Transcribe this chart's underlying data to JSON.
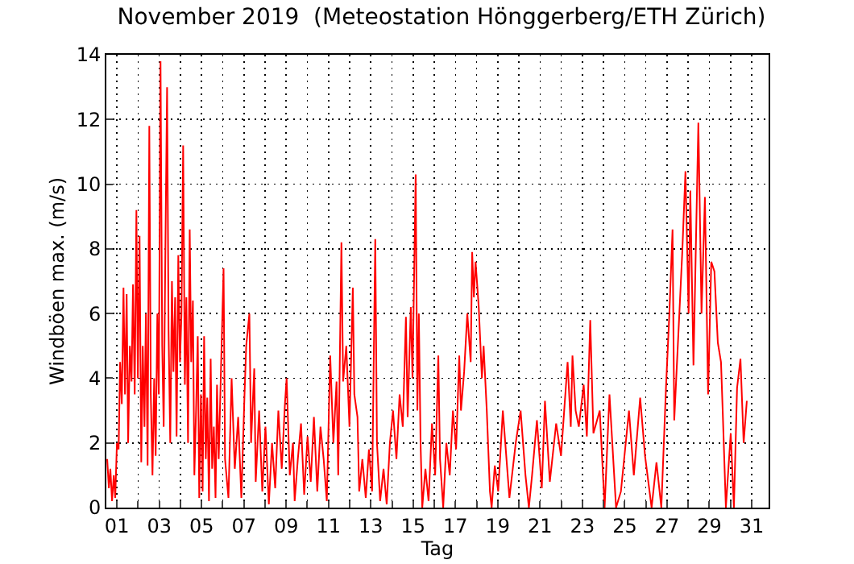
{
  "chart_data": {
    "type": "line",
    "title": "November 2019  (Meteostation Hönggerberg/ETH Zürich)",
    "xlabel": "Tag",
    "ylabel": "Windböen max. (m/s)",
    "x": [
      0.54,
      0.62,
      0.69,
      0.77,
      0.85,
      0.92,
      1.0,
      1.08,
      1.15,
      1.23,
      1.31,
      1.38,
      1.46,
      1.53,
      1.61,
      1.69,
      1.76,
      1.84,
      1.92,
      1.99,
      2.07,
      2.15,
      2.22,
      2.3,
      2.37,
      2.45,
      2.53,
      2.6,
      2.68,
      2.76,
      2.83,
      2.91,
      2.98,
      3.06,
      3.14,
      3.21,
      3.29,
      3.37,
      3.44,
      3.52,
      3.6,
      3.67,
      3.75,
      3.82,
      3.9,
      3.98,
      4.05,
      4.13,
      4.21,
      4.28,
      4.36,
      4.44,
      4.51,
      4.59,
      4.66,
      4.74,
      4.82,
      4.89,
      4.97,
      5.05,
      5.12,
      5.2,
      5.27,
      5.35,
      5.43,
      5.5,
      5.58,
      5.66,
      5.73,
      5.81,
      6.04,
      6.11,
      6.27,
      6.42,
      6.57,
      6.73,
      6.88,
      7.03,
      7.11,
      7.26,
      7.34,
      7.49,
      7.56,
      7.72,
      7.87,
      8.02,
      8.18,
      8.33,
      8.48,
      8.63,
      8.79,
      8.94,
      9.02,
      9.17,
      9.32,
      9.4,
      9.55,
      9.7,
      9.85,
      10.01,
      10.16,
      10.31,
      10.47,
      10.62,
      10.77,
      10.92,
      11.08,
      11.23,
      11.38,
      11.46,
      11.61,
      11.69,
      11.84,
      11.99,
      12.15,
      12.22,
      12.37,
      12.45,
      12.6,
      12.76,
      12.91,
      13.06,
      13.21,
      13.29,
      13.44,
      13.6,
      13.75,
      13.9,
      14.05,
      14.21,
      14.36,
      14.51,
      14.66,
      14.74,
      14.89,
      14.97,
      15.12,
      15.2,
      15.27,
      15.35,
      15.43,
      15.58,
      15.73,
      15.89,
      16.04,
      16.19,
      16.27,
      16.42,
      16.57,
      16.73,
      16.88,
      17.03,
      17.18,
      17.26,
      17.41,
      17.56,
      17.72,
      17.79,
      17.87,
      17.95,
      18.1,
      18.25,
      18.33,
      18.48,
      18.63,
      18.71,
      18.86,
      19.02,
      19.24,
      19.55,
      19.85,
      20.08,
      20.31,
      20.47,
      20.62,
      20.85,
      21.08,
      21.23,
      21.46,
      21.76,
      21.99,
      22.3,
      22.45,
      22.53,
      22.68,
      22.83,
      23.06,
      23.21,
      23.37,
      23.52,
      23.82,
      24.05,
      24.28,
      24.59,
      24.82,
      25.2,
      25.43,
      25.73,
      25.96,
      26.27,
      26.5,
      26.73,
      26.95,
      27.11,
      27.26,
      27.34,
      27.56,
      27.72,
      27.87,
      28.02,
      28.1,
      28.25,
      28.4,
      28.48,
      28.63,
      28.79,
      28.94,
      29.09,
      29.24,
      29.4,
      29.55,
      29.63,
      29.78,
      30.01,
      30.16,
      30.31,
      30.47,
      30.62,
      30.77
    ],
    "series": [
      {
        "color": "#ff0000",
        "values": [
          1.5,
          0.6,
          1.2,
          0.2,
          1.0,
          0.3,
          2.0,
          1.8,
          4.5,
          3.2,
          6.8,
          3.5,
          6.6,
          2.0,
          5.0,
          3.9,
          6.9,
          3.5,
          9.2,
          4.0,
          8.4,
          1.4,
          5.0,
          2.5,
          6.0,
          1.3,
          11.8,
          3.5,
          1.0,
          4.0,
          1.6,
          6.0,
          3.5,
          13.8,
          5.0,
          2.5,
          8.0,
          13.0,
          5.5,
          2.0,
          7.0,
          4.2,
          6.5,
          2.2,
          7.8,
          4.5,
          6.0,
          11.2,
          3.8,
          6.5,
          2.0,
          8.6,
          4.5,
          6.4,
          1.0,
          3.0,
          5.3,
          0.3,
          3.5,
          0.5,
          5.3,
          1.5,
          3.4,
          0.2,
          4.6,
          1.2,
          2.5,
          0.3,
          3.8,
          1.5,
          7.4,
          1.5,
          0.3,
          4.0,
          1.2,
          2.8,
          0.3,
          3.5,
          5.0,
          6.0,
          2.0,
          4.3,
          0.8,
          3.0,
          0.5,
          2.5,
          0.1,
          2.0,
          0.6,
          3.0,
          1.2,
          3.2,
          4.0,
          1.0,
          2.0,
          0.2,
          1.5,
          2.6,
          0.4,
          2.2,
          0.8,
          2.8,
          0.5,
          2.5,
          1.5,
          0.2,
          4.7,
          2.0,
          3.9,
          1.0,
          8.2,
          3.9,
          5.0,
          2.5,
          6.8,
          3.5,
          2.8,
          0.5,
          1.5,
          0.3,
          1.8,
          0.5,
          8.3,
          2.0,
          0.2,
          1.2,
          0.1,
          2.0,
          3.0,
          1.5,
          3.5,
          2.5,
          5.9,
          2.8,
          6.2,
          4.0,
          10.3,
          3.0,
          6.0,
          2.0,
          0.0,
          1.2,
          0.2,
          2.6,
          1.0,
          4.7,
          1.5,
          0.0,
          2.0,
          1.0,
          3.0,
          1.8,
          4.7,
          3.0,
          4.2,
          6.0,
          4.5,
          7.9,
          6.5,
          7.6,
          6.2,
          4.0,
          5.0,
          3.0,
          0.5,
          0.0,
          1.3,
          0.5,
          3.0,
          0.3,
          2.0,
          3.0,
          1.0,
          0.0,
          1.0,
          2.7,
          0.6,
          3.3,
          0.8,
          2.6,
          1.6,
          4.5,
          2.5,
          4.7,
          3.0,
          2.5,
          3.8,
          2.2,
          5.8,
          2.3,
          3.0,
          0.0,
          3.5,
          0.0,
          0.5,
          3.0,
          1.0,
          3.4,
          1.6,
          0.0,
          1.4,
          0.0,
          3.7,
          6.0,
          8.6,
          2.7,
          5.7,
          7.9,
          10.4,
          6.0,
          9.8,
          4.4,
          9.3,
          11.9,
          6.0,
          9.6,
          3.5,
          7.6,
          7.3,
          5.1,
          4.5,
          3.0,
          0.0,
          2.3,
          0.0,
          3.7,
          4.6,
          2.0,
          3.3
        ]
      }
    ],
    "xlim": [
      0.5,
      31.8
    ],
    "xticks": [
      {
        "value": 1,
        "label": "01"
      },
      {
        "value": 2,
        "label": null
      },
      {
        "value": 3,
        "label": "03"
      },
      {
        "value": 4,
        "label": null
      },
      {
        "value": 5,
        "label": "05"
      },
      {
        "value": 6,
        "label": null
      },
      {
        "value": 7,
        "label": "07"
      },
      {
        "value": 8,
        "label": null
      },
      {
        "value": 9,
        "label": "09"
      },
      {
        "value": 10,
        "label": null
      },
      {
        "value": 11,
        "label": "11"
      },
      {
        "value": 12,
        "label": null
      },
      {
        "value": 13,
        "label": "13"
      },
      {
        "value": 14,
        "label": null
      },
      {
        "value": 15,
        "label": "15"
      },
      {
        "value": 16,
        "label": null
      },
      {
        "value": 17,
        "label": "17"
      },
      {
        "value": 18,
        "label": null
      },
      {
        "value": 19,
        "label": "19"
      },
      {
        "value": 20,
        "label": null
      },
      {
        "value": 21,
        "label": "21"
      },
      {
        "value": 22,
        "label": null
      },
      {
        "value": 23,
        "label": "23"
      },
      {
        "value": 24,
        "label": null
      },
      {
        "value": 25,
        "label": "25"
      },
      {
        "value": 26,
        "label": null
      },
      {
        "value": 27,
        "label": "27"
      },
      {
        "value": 28,
        "label": null
      },
      {
        "value": 29,
        "label": "29"
      },
      {
        "value": 30,
        "label": null
      },
      {
        "value": 31,
        "label": "31"
      }
    ],
    "ylim": [
      0,
      14
    ],
    "yticks": [
      0,
      2,
      4,
      6,
      8,
      10,
      12,
      14
    ],
    "grid": true,
    "marker": "none",
    "line_style": "solid"
  }
}
